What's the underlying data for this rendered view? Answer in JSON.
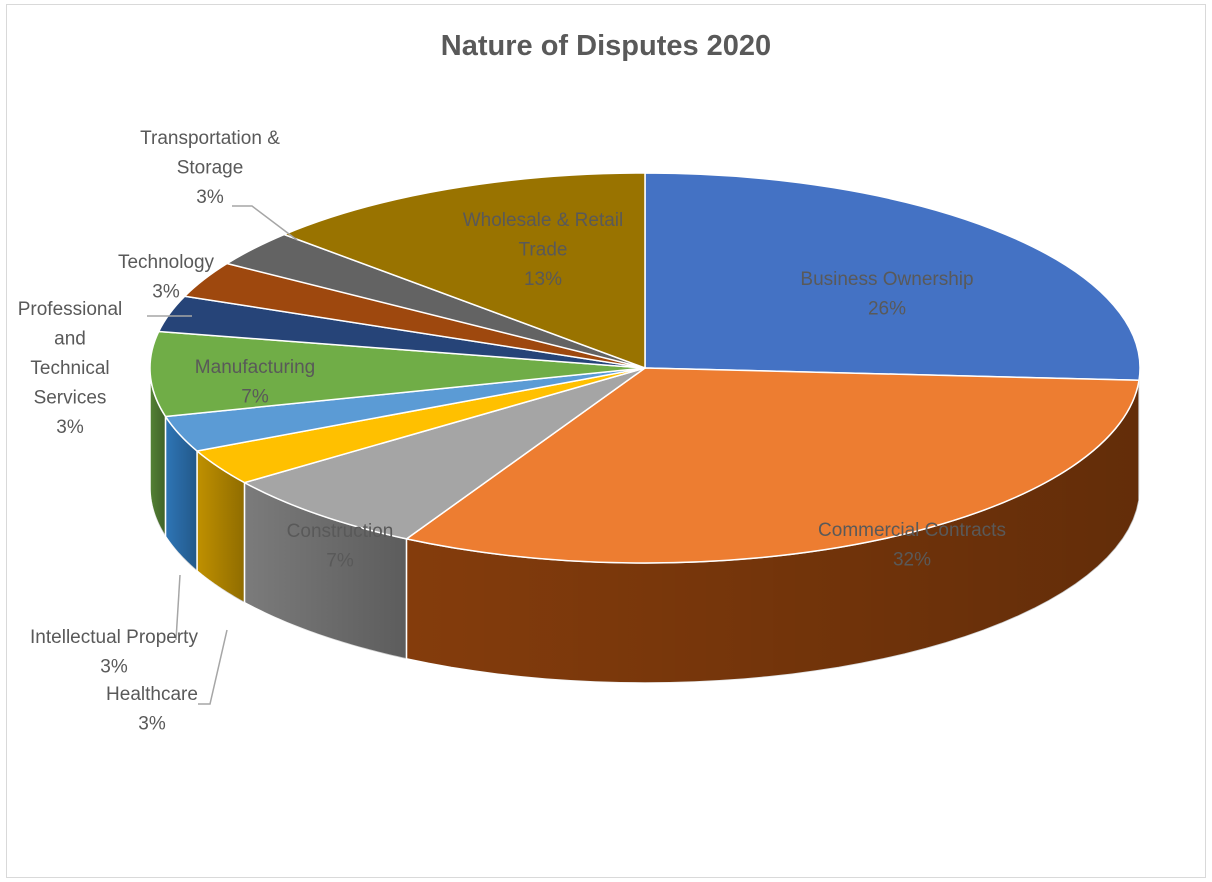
{
  "chart_data": {
    "type": "pie",
    "title": "Nature of Disputes 2020",
    "three_d": true,
    "slices": [
      {
        "label": "Business Ownership",
        "value": 26,
        "display": "26%",
        "color": "#4472c4",
        "side": "#2f528f"
      },
      {
        "label": "Commercial Contracts",
        "value": 32,
        "display": "32%",
        "color": "#ed7d31",
        "side": "#843c0c"
      },
      {
        "label": "Construction",
        "value": 7,
        "display": "7%",
        "color": "#a5a5a5",
        "side": "#7b7b7b"
      },
      {
        "label": "Healthcare",
        "value": 3,
        "display": "3%",
        "color": "#ffc000",
        "side": "#bf9000"
      },
      {
        "label": "Intellectual Property",
        "value": 3,
        "display": "3%",
        "color": "#5b9bd5",
        "side": "#2e75b6"
      },
      {
        "label": "Manufacturing",
        "value": 7,
        "display": "7%",
        "color": "#70ad47",
        "side": "#548235"
      },
      {
        "label": "Professional and Technical Services",
        "value": 3,
        "display": "3%",
        "color": "#264478",
        "side": "#1a2f54"
      },
      {
        "label": "Technology",
        "value": 3,
        "display": "3%",
        "color": "#9e480e",
        "side": "#6e3209"
      },
      {
        "label": "Transportation & Storage",
        "value": 3,
        "display": "3%",
        "color": "#636363",
        "side": "#444444"
      },
      {
        "label": "Wholesale & Retail Trade",
        "value": 13,
        "display": "13%",
        "color": "#997300",
        "side": "#6b5000"
      }
    ]
  }
}
